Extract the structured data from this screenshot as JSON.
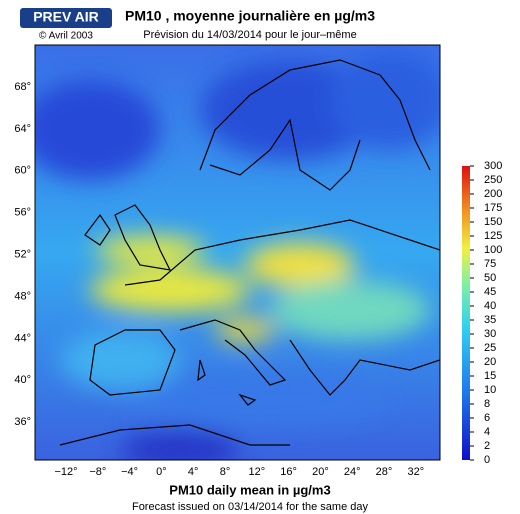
{
  "header": {
    "logo": "PREV AIR",
    "copyright": "© Avril 2003",
    "title": "PM10 , moyenne journalière en µg/m3",
    "subtitle": "Prévision du 14/03/2014 pour le jour–même"
  },
  "footer": {
    "title": "PM10 daily mean in µg/m3",
    "subtitle": "Forecast issued on 03/14/2014 for the same day"
  },
  "map": {
    "lat_labels": [
      "68°",
      "64°",
      "60°",
      "56°",
      "52°",
      "48°",
      "44°",
      "40°",
      "36°"
    ],
    "lon_labels": [
      "−12°",
      "−8°",
      "−4°",
      "0°",
      "4°",
      "8°",
      "12°",
      "16°",
      "20°",
      "24°",
      "28°",
      "32°"
    ]
  },
  "colorbar": {
    "labels": [
      "300",
      "250",
      "200",
      "175",
      "150",
      "125",
      "100",
      "75",
      "50",
      "45",
      "40",
      "35",
      "30",
      "25",
      "20",
      "15",
      "10",
      "8",
      "6",
      "4",
      "2",
      "0"
    ]
  }
}
